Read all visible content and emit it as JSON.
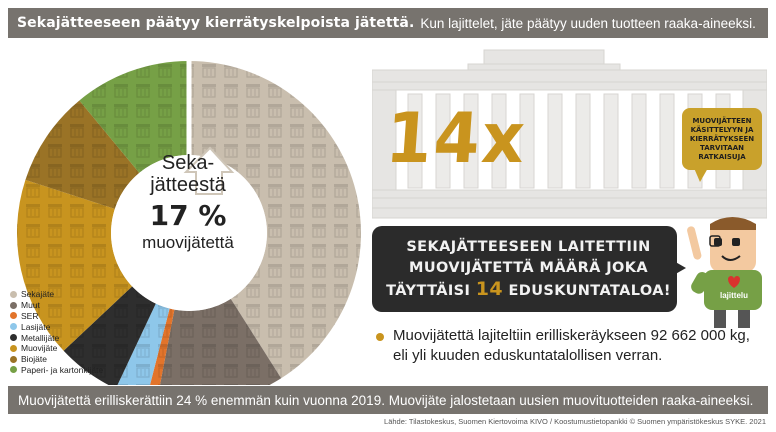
{
  "header": {
    "title_bold": "Sekajätteeseen päätyy kierrätyskelpoista jätettä.",
    "title_light": "Kun lajittelet, jäte päätyy uuden tuotteen raaka-aineeksi."
  },
  "donut": {
    "center_line1": "Seka-",
    "center_line2": "jätteestä",
    "center_pct": "17 %",
    "center_line3": "muovijätettä"
  },
  "legend": [
    {
      "label": "Sekajäte",
      "color": "#c9beae"
    },
    {
      "label": "Muut",
      "color": "#7b6f66"
    },
    {
      "label": "SER",
      "color": "#e2742b"
    },
    {
      "label": "Lasijäte",
      "color": "#8ec7ea"
    },
    {
      "label": "Metallijäte",
      "color": "#2e2e2e"
    },
    {
      "label": "Muovijäte",
      "color": "#c8941f"
    },
    {
      "label": "Biojäte",
      "color": "#9a7326"
    },
    {
      "label": "Paperi- ja kartonkijäte",
      "color": "#76a046"
    }
  ],
  "chart_data": {
    "type": "pie",
    "categories": [
      "Sekajäte",
      "Muut",
      "SER",
      "Lasijäte",
      "Metallijäte",
      "Muovijäte",
      "Biojäte",
      "Paperi- ja kartonkijäte"
    ],
    "values": [
      41,
      12,
      1,
      3,
      6,
      17,
      9,
      11
    ],
    "annotation": "Sekajätteestä 17 % muovijätettä"
  },
  "comparison": {
    "multiplier": "14x",
    "bubble_text": "MUOVIJÄTTEEN\nKÄSITTELYYN JA\nKIERRÄTYKSEEN\nTARVITAAN\nRATKAISUJA",
    "banner_line1": "SEKAJÄTTEESEEN LAITETTIIN",
    "banner_line2": "MUOVIJÄTETTÄ MÄÄRÄ JOKA",
    "banner_line3_pre": "TÄYTTÄISI",
    "banner_number": "14",
    "banner_line3_post": "EDUSKUNTATALOA!",
    "mascot_label": "lajittelu"
  },
  "fact": "Muovijätettä lajiteltiin erilliskeräykseen 92 662 000 kg, eli yli kuuden eduskuntatalollisen verran.",
  "footer": "Muovijätettä erilliskerättiin 24 % enemmän kuin vuonna 2019. Muovijäte jalostetaan uusien muovituotteiden raaka-aineeksi.",
  "source": "Lähde: Tilastokeskus, Suomen Kiertovoima KIVO / Koostumustietopankki © Suomen ympäristökeskus SYKE. 2021"
}
